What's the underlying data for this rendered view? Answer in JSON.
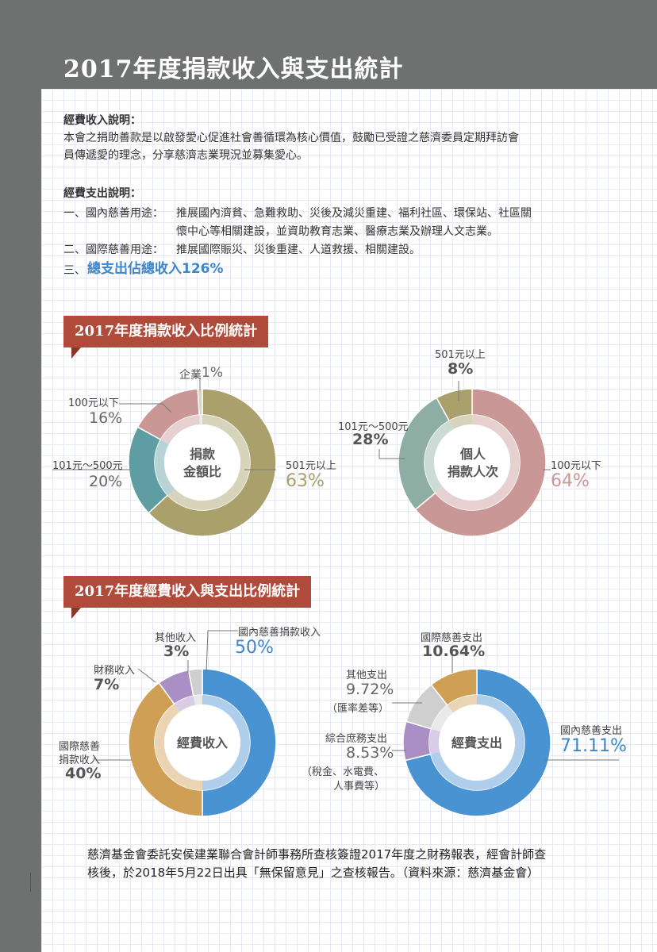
{
  "page": {
    "title": "2017年度捐款收入與支出統計"
  },
  "income_desc": {
    "heading": "經費收入說明：",
    "line1": "本會之捐助善款是以啟發愛心促進社會善循環為核心價值，鼓勵已受證之慈濟委員定期拜訪會",
    "line2": "員傳遞愛的理念，分享慈濟志業現況並募集愛心。"
  },
  "expense_desc": {
    "heading": "經費支出說明：",
    "item1_label": "一、國內慈善用途：",
    "item1_line1": "推展國內濟貧、急難救助、災後及減災重建、福利社區、環保站、社區關",
    "item1_line2": "懷中心等相關建設，並資助教育志業、醫療志業及辦理人文志業。",
    "item2_label": "二、國際慈善用途：",
    "item2_text": "推展國際賑災、災後重建、人道救援、相關建設。",
    "item3_label": "三、",
    "item3_text": "總支出佔總收入126%"
  },
  "section1": {
    "title": "2017年度捐款收入比例統計"
  },
  "section2": {
    "title": "2017年度經費收入與支出比例統計"
  },
  "footer": {
    "line1": "慈濟基金會委託安侯建業聯合會計師事務所查核簽證2017年度之財務報表，經會計師查",
    "line2": "核後，於2018年5月22日出具「無保留意見」之查核報告。（資料來源：慈濟基金會）"
  },
  "colors": {
    "olive": "#a9a06b",
    "teal": "#5e9ea2",
    "pink": "#c99896",
    "sage": "#8eaea4",
    "blue": "#4a93d2",
    "tan": "#cf9f55",
    "purple": "#a98fc3",
    "gray": "#cfcfcf",
    "banner": "#b04a3a",
    "accent_blue": "#3d86c9"
  },
  "chart_data": [
    {
      "type": "pie",
      "center_label": [
        "捐款",
        "金額比"
      ],
      "slices": [
        {
          "name": "501元以上",
          "value": 63,
          "value_label": "63%",
          "color": "#a9a06b"
        },
        {
          "name": "101元～500元",
          "value": 20,
          "value_label": "20%",
          "color": "#5e9ea2"
        },
        {
          "name": "100元以下",
          "value": 16,
          "value_label": "16%",
          "color": "#c99896"
        },
        {
          "name": "企業",
          "value": 1,
          "value_label": "1%",
          "color": "#d8d4c2"
        }
      ]
    },
    {
      "type": "pie",
      "center_label": [
        "個人",
        "捐款人次"
      ],
      "slices": [
        {
          "name": "100元以下",
          "value": 64,
          "value_label": "64%",
          "color": "#c99896"
        },
        {
          "name": "101元～500元",
          "value": 28,
          "value_label": "28%",
          "color": "#8eaea4"
        },
        {
          "name": "501元以上",
          "value": 8,
          "value_label": "8%",
          "color": "#a9a06b"
        }
      ]
    },
    {
      "type": "pie",
      "center_label": [
        "經費收入"
      ],
      "slices": [
        {
          "name": "國內慈善捐款收入",
          "value": 50,
          "value_label": "50%",
          "color": "#4a93d2"
        },
        {
          "name": "國際慈善捐款收入",
          "name_lines": [
            "國際慈善",
            "捐款收入"
          ],
          "value": 40,
          "value_label": "40%",
          "color": "#cf9f55"
        },
        {
          "name": "財務收入",
          "value": 7,
          "value_label": "7%",
          "color": "#a98fc3"
        },
        {
          "name": "其他收入",
          "value": 3,
          "value_label": "3%",
          "color": "#cfcfcf"
        }
      ]
    },
    {
      "type": "pie",
      "center_label": [
        "經費支出"
      ],
      "slices": [
        {
          "name": "國內慈善支出",
          "value": 71.11,
          "value_label": "71.11%",
          "color": "#4a93d2"
        },
        {
          "name": "綜合庶務支出",
          "value": 8.53,
          "value_label": "8.53%",
          "note": [
            "（稅金、水電費、",
            "人事費等）"
          ],
          "color": "#a98fc3"
        },
        {
          "name": "其他支出",
          "value": 9.72,
          "value_label": "9.72%",
          "note": [
            "（匯率差等）"
          ],
          "color": "#cfcfcf"
        },
        {
          "name": "國際慈善支出",
          "value": 10.64,
          "value_label": "10.64%",
          "color": "#cf9f55"
        }
      ]
    }
  ]
}
